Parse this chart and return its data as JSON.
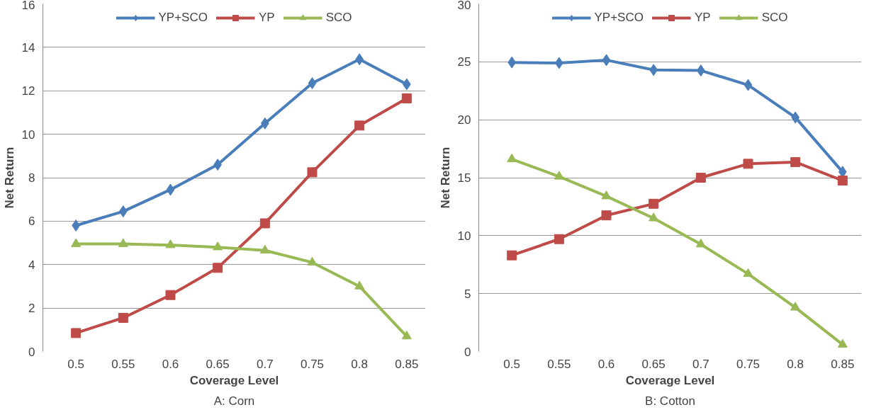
{
  "chart_data": [
    {
      "type": "line",
      "xlabel": "Coverage Level",
      "ylabel": "Net Return",
      "categories": [
        "0.5",
        "0.55",
        "0.6",
        "0.65",
        "0.7",
        "0.75",
        "0.8",
        "0.85"
      ],
      "ylim": [
        0,
        16
      ],
      "yticks": [
        0,
        2,
        4,
        6,
        8,
        10,
        12,
        14,
        16
      ],
      "grid": "y",
      "legend": "top",
      "annotations": [
        "A: Corn"
      ],
      "series": [
        {
          "name": "YP+SCO",
          "color": "#4a7ebb",
          "marker": "diamond",
          "values": [
            5.8,
            6.45,
            7.45,
            8.6,
            10.5,
            12.35,
            13.45,
            12.3
          ]
        },
        {
          "name": "YP",
          "color": "#be4b48",
          "marker": "square",
          "values": [
            0.85,
            1.55,
            2.6,
            3.85,
            5.9,
            8.25,
            10.4,
            11.65
          ]
        },
        {
          "name": "SCO",
          "color": "#98b954",
          "marker": "triangle",
          "values": [
            4.95,
            4.95,
            4.9,
            4.8,
            4.65,
            4.1,
            3.0,
            0.7
          ]
        }
      ]
    },
    {
      "type": "line",
      "xlabel": "Coverage Level",
      "ylabel": "Net Return",
      "categories": [
        "0.5",
        "0.55",
        "0.6",
        "0.65",
        "0.7",
        "0.75",
        "0.8",
        "0.85"
      ],
      "ylim": [
        0,
        30
      ],
      "yticks": [
        0,
        5,
        10,
        15,
        20,
        25,
        30
      ],
      "grid": "y",
      "legend": "top",
      "annotations": [
        "B: Cotton"
      ],
      "series": [
        {
          "name": "YP+SCO",
          "color": "#4a7ebb",
          "marker": "diamond",
          "values": [
            24.95,
            24.9,
            25.15,
            24.3,
            24.25,
            23.0,
            20.2,
            15.5
          ]
        },
        {
          "name": "YP",
          "color": "#be4b48",
          "marker": "square",
          "values": [
            8.3,
            9.7,
            11.75,
            12.75,
            15.0,
            16.2,
            16.35,
            14.75
          ]
        },
        {
          "name": "SCO",
          "color": "#98b954",
          "marker": "triangle",
          "values": [
            16.6,
            15.1,
            13.4,
            11.5,
            9.25,
            6.7,
            3.8,
            0.6
          ]
        }
      ]
    }
  ]
}
